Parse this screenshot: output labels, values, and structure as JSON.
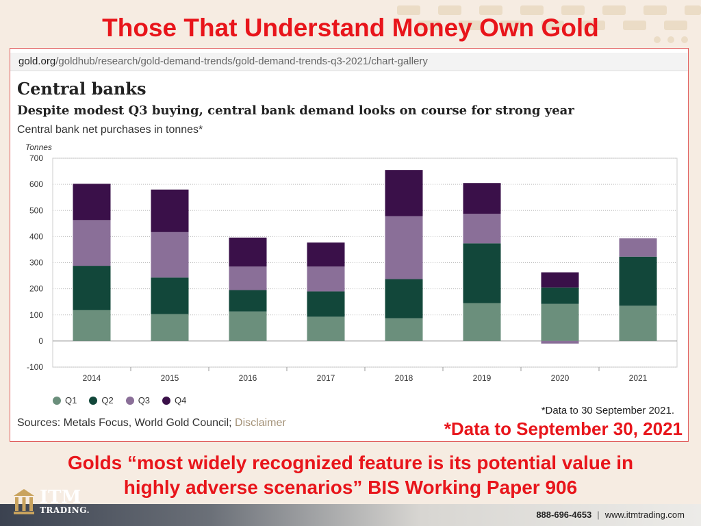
{
  "headline": "Those That Understand Money Own Gold",
  "browser": {
    "url_domain": "gold.org",
    "url_path": "/goldhub/research/gold-demand-trends/gold-demand-trends-q3-2021/chart-gallery"
  },
  "section_title": "Central banks",
  "subtitle": "Despite modest Q3 buying, central bank demand looks on course for strong year",
  "description": "Central bank net purchases in tonnes*",
  "footnote": "*Data to 30 September 2021.",
  "sources": {
    "text": "Sources: Metals Focus, World Gold Council; ",
    "link": "Disclaimer"
  },
  "data_note": "*Data to September 30, 2021",
  "quote": {
    "line1": "Golds “most widely recognized feature is its potential value in",
    "line2": "highly adverse scenarios” BIS Working Paper 906"
  },
  "logo": {
    "big": "ITM",
    "small": "TRADING."
  },
  "contact": {
    "phone": "888-696-4653",
    "separator": "|",
    "website": "www.itmtrading.com"
  },
  "colors": {
    "accent": "#e8151b",
    "q1": "#6b8f7c",
    "q2": "#12473a",
    "q3": "#8a6f98",
    "q4": "#3a1049"
  },
  "chart_data": {
    "type": "bar",
    "stacked": true,
    "ylabel": "Tonnes",
    "ylim": [
      -100,
      700
    ],
    "yticks": [
      -100,
      0,
      100,
      200,
      300,
      400,
      500,
      600,
      700
    ],
    "grid": true,
    "legend_position": "bottom-left",
    "categories": [
      "2014",
      "2015",
      "2016",
      "2017",
      "2018",
      "2019",
      "2020",
      "2021"
    ],
    "series": [
      {
        "name": "Q1",
        "color": "#6b8f7c",
        "values": [
          118,
          103,
          113,
          93,
          87,
          145,
          142,
          135
        ]
      },
      {
        "name": "Q2",
        "color": "#12473a",
        "values": [
          170,
          140,
          82,
          97,
          150,
          229,
          63,
          188
        ]
      },
      {
        "name": "Q3",
        "color": "#8a6f98",
        "values": [
          175,
          174,
          90,
          95,
          241,
          113,
          -10,
          70
        ]
      },
      {
        "name": "Q4",
        "color": "#3a1049",
        "values": [
          139,
          163,
          111,
          92,
          177,
          118,
          58,
          0
        ]
      }
    ]
  }
}
